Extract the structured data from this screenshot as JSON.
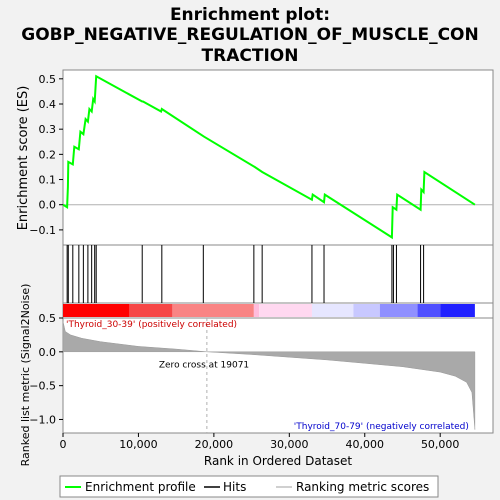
{
  "chart_data": {
    "type": "line",
    "title_lines": [
      "Enrichment plot:",
      "GOBP_NEGATIVE_REGULATION_OF_MUSCLE_CON",
      "TRACTION"
    ],
    "es_panel": {
      "ylabel": "Enrichment score (ES)",
      "ylim": [
        -0.16,
        0.535
      ],
      "yticks": [
        -0.1,
        0.0,
        0.1,
        0.2,
        0.3,
        0.4,
        0.5
      ],
      "ytick_labels": [
        "−0.1",
        "0.0",
        "0.1",
        "0.2",
        "0.3",
        "0.4",
        "0.5"
      ],
      "series_name": "Enrichment profile",
      "color": "#00ff00",
      "x": [
        0,
        550,
        650,
        700,
        1300,
        1500,
        2100,
        2300,
        2700,
        3000,
        3300,
        3500,
        3800,
        4000,
        4200,
        4400,
        10500,
        10600,
        13000,
        13100,
        18700,
        25400,
        26400,
        33000,
        33100,
        34600,
        34700,
        43600,
        43700,
        44200,
        44300,
        47400,
        47500,
        47800,
        47900,
        54600
      ],
      "y": [
        0.0,
        -0.01,
        0.07,
        0.17,
        0.16,
        0.23,
        0.22,
        0.29,
        0.28,
        0.34,
        0.33,
        0.38,
        0.37,
        0.42,
        0.41,
        0.51,
        0.41,
        0.41,
        0.37,
        0.38,
        0.27,
        0.15,
        0.13,
        0.02,
        0.04,
        0.01,
        0.04,
        -0.13,
        -0.01,
        -0.02,
        0.04,
        -0.02,
        0.06,
        0.05,
        0.13,
        0.0
      ]
    },
    "hits": {
      "series_name": "Hits",
      "positions": [
        550,
        700,
        1300,
        2100,
        2700,
        3300,
        3800,
        4200,
        4400,
        10500,
        13100,
        18600,
        25300,
        26400,
        33000,
        34600,
        43600,
        43800,
        44200,
        47400,
        47800
      ]
    },
    "rank_metric_panel": {
      "ylabel": "Ranked list metric (Signal2Noise)",
      "ylim": [
        -1.2,
        0.5
      ],
      "yticks": [
        -1.0,
        -0.5,
        0.0,
        0.5
      ],
      "ytick_labels": [
        "−1.0",
        "−0.5",
        "0.0",
        "0.5"
      ],
      "series_name": "Ranking metric scores",
      "fill_color": "#a9a9a9",
      "x": [
        0,
        300,
        1000,
        2500,
        5000,
        10000,
        15000,
        19071,
        25000,
        30000,
        35000,
        40000,
        45000,
        50000,
        52000,
        53500,
        54200,
        54600
      ],
      "y": [
        0.45,
        0.3,
        0.25,
        0.2,
        0.15,
        0.08,
        0.04,
        0.0,
        -0.04,
        -0.08,
        -0.12,
        -0.17,
        -0.22,
        -0.3,
        -0.36,
        -0.45,
        -0.6,
        -1.15
      ],
      "positive_label": "'Thyroid_30-39' (positively correlated)",
      "negative_label": "'Thyroid_70-79' (negatively correlated)",
      "zero_cross_label": "Zero cross at 19071",
      "zero_cross": 19071
    },
    "xaxis": {
      "xlabel": "Rank in Ordered Dataset",
      "xlim": [
        0,
        57000
      ],
      "xticks": [
        0,
        10000,
        20000,
        30000,
        40000,
        50000
      ],
      "xtick_labels": [
        "0",
        "10,000",
        "20,000",
        "30,000",
        "40,000",
        "50,000"
      ]
    },
    "color_bar": {
      "colors": [
        "#ff0000",
        "#f64646",
        "#f98484",
        "#ffbcdc",
        "#ffd8f0",
        "#e6e6ff",
        "#c8c8ff",
        "#9090ff",
        "#5050ff",
        "#2020ff",
        "#0000d8"
      ],
      "bounds": [
        0,
        8800,
        14500,
        25300,
        26000,
        33000,
        38500,
        42000,
        47000,
        50000,
        54600
      ]
    },
    "legend": {
      "placement": "bottom",
      "entries": [
        {
          "label": "Enrichment profile",
          "color": "#00ff00"
        },
        {
          "label": "Hits",
          "color": "#000000"
        },
        {
          "label": "Ranking metric scores",
          "color": "#c0c0c0"
        }
      ]
    }
  }
}
